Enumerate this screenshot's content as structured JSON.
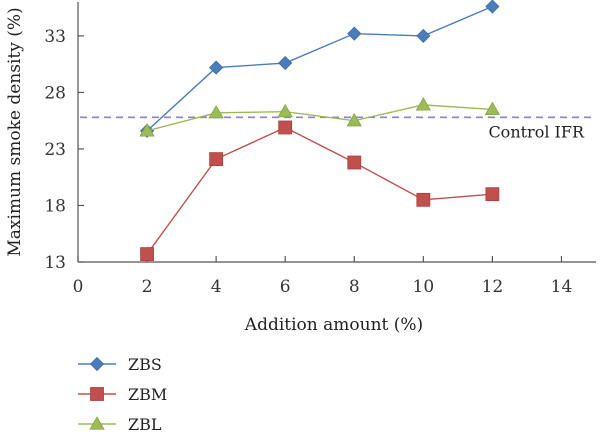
{
  "chart_data": {
    "type": "line",
    "title": "",
    "xlabel": "Addition amount (%)",
    "ylabel": "Maximum smoke density (%)",
    "xlim": [
      0,
      15
    ],
    "ylim": [
      13,
      36
    ],
    "xticks": [
      0,
      2,
      4,
      6,
      8,
      10,
      12,
      14
    ],
    "yticks": [
      13,
      18,
      23,
      28,
      33
    ],
    "grid": false,
    "legend": "bottom-left",
    "series": [
      {
        "name": "ZBS",
        "color": "#4a7ebb",
        "marker": "diamond",
        "x": [
          2,
          4,
          6,
          8,
          10,
          12
        ],
        "y": [
          24.6,
          30.2,
          30.6,
          33.2,
          33.0,
          35.6
        ]
      },
      {
        "name": "ZBM",
        "color": "#c0504d",
        "marker": "square",
        "x": [
          2,
          4,
          6,
          8,
          10,
          12
        ],
        "y": [
          13.7,
          22.1,
          24.9,
          21.8,
          18.5,
          19.0
        ]
      },
      {
        "name": "ZBL",
        "color": "#9bbb59",
        "marker": "triangle",
        "x": [
          2,
          4,
          6,
          8,
          10,
          12
        ],
        "y": [
          24.6,
          26.2,
          26.3,
          25.5,
          26.9,
          26.5
        ]
      }
    ],
    "reference_line": {
      "label": "Control IFR",
      "y": 25.8,
      "color": "#8c7fd0",
      "style": "dashed"
    }
  }
}
